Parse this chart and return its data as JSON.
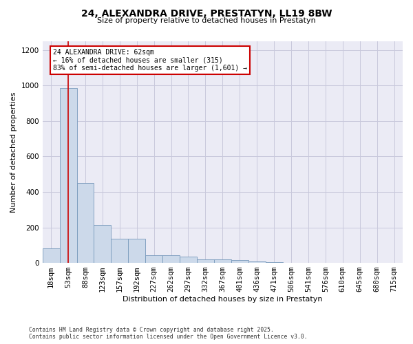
{
  "title": "24, ALEXANDRA DRIVE, PRESTATYN, LL19 8BW",
  "subtitle": "Size of property relative to detached houses in Prestatyn",
  "xlabel": "Distribution of detached houses by size in Prestatyn",
  "ylabel": "Number of detached properties",
  "footer_line1": "Contains HM Land Registry data © Crown copyright and database right 2025.",
  "footer_line2": "Contains public sector information licensed under the Open Government Licence v3.0.",
  "bar_color": "#ccd9ea",
  "bar_edge_color": "#7799bb",
  "vline_color": "#cc0000",
  "vline_x": 1,
  "annotation_text": "24 ALEXANDRA DRIVE: 62sqm\n← 16% of detached houses are smaller (315)\n83% of semi-detached houses are larger (1,601) →",
  "annotation_ec": "#cc0000",
  "categories": [
    "18sqm",
    "53sqm",
    "88sqm",
    "123sqm",
    "157sqm",
    "192sqm",
    "227sqm",
    "262sqm",
    "297sqm",
    "332sqm",
    "367sqm",
    "401sqm",
    "436sqm",
    "471sqm",
    "506sqm",
    "541sqm",
    "576sqm",
    "610sqm",
    "645sqm",
    "680sqm",
    "715sqm"
  ],
  "values": [
    80,
    985,
    450,
    215,
    135,
    135,
    42,
    42,
    35,
    20,
    18,
    15,
    10,
    5,
    2,
    1,
    0,
    0,
    0,
    0,
    0
  ],
  "ylim": [
    0,
    1250
  ],
  "yticks": [
    0,
    200,
    400,
    600,
    800,
    1000,
    1200
  ],
  "grid_color": "#c8c8dc",
  "ax_bg": "#ebebf5",
  "fig_width": 6.0,
  "fig_height": 5.0,
  "dpi": 100
}
